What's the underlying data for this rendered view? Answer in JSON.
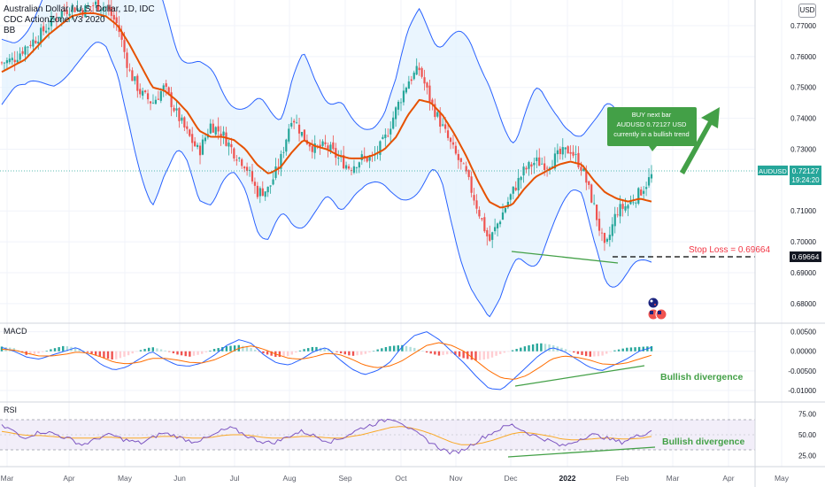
{
  "header": {
    "symbol_title": "Australian Dollar / U.S. Dollar, 1D, IDC",
    "indicator_1": "CDC ActionZone V3 2020",
    "indicator_2": "BB",
    "currency": "USD"
  },
  "colors": {
    "up": "#26a69a",
    "down": "#ef5350",
    "bb_line": "#2962ff",
    "bb_fill": "#e3f2fd",
    "ema": "#e65100",
    "annotation_green": "#43a047",
    "stop_loss": "#f23645",
    "macd_line": "#2962ff",
    "signal_line": "#ff6d00",
    "rsi_line": "#7e57c2",
    "rsi_ma": "#f9a825",
    "rsi_band": "#ede7f6"
  },
  "icons": [
    "australia-flag-icon",
    "usa-flag-icon"
  ],
  "annotations": {
    "buy_box": [
      "BUY next bar",
      "AUDUSD 0.72127 USD",
      "currently in a bullish trend"
    ],
    "stop_loss": "Stop Loss = 0.69664",
    "macd_divergence": "Bullish divergence",
    "rsi_divergence": "Bullish divergence"
  },
  "price_tags": {
    "symbol": "AUDUSD",
    "last": "0.72127",
    "countdown": "19:24:20",
    "stop": "0.69664"
  },
  "chart_data": [
    {
      "type": "candlestick",
      "title": "Australian Dollar / U.S. Dollar, 1D, IDC",
      "ylim": [
        0.6745,
        0.7783
      ],
      "y_ticks": [
        "0.77000",
        "0.76000",
        "0.75000",
        "0.74000",
        "0.73000",
        "0.71000",
        "0.70000",
        "0.69000",
        "0.68000"
      ],
      "x_ticks": [
        "Mar",
        "Apr",
        "May",
        "Jun",
        "Jul",
        "Aug",
        "Sep",
        "Oct",
        "Nov",
        "Dec",
        "2022",
        "Feb",
        "Mar",
        "Apr",
        "May"
      ],
      "close_path": [
        0.758,
        0.759,
        0.763,
        0.766,
        0.77,
        0.774,
        0.776,
        0.775,
        0.777,
        0.776,
        0.77,
        0.755,
        0.748,
        0.745,
        0.75,
        0.742,
        0.735,
        0.729,
        0.738,
        0.735,
        0.729,
        0.725,
        0.716,
        0.717,
        0.726,
        0.741,
        0.734,
        0.73,
        0.731,
        0.727,
        0.724,
        0.727,
        0.727,
        0.733,
        0.743,
        0.752,
        0.756,
        0.745,
        0.737,
        0.729,
        0.722,
        0.711,
        0.7,
        0.708,
        0.716,
        0.723,
        0.726,
        0.725,
        0.728,
        0.73,
        0.724,
        0.712,
        0.697,
        0.71,
        0.712,
        0.716,
        0.7213
      ],
      "series": [
        {
          "name": "BB",
          "ema": [
            0.755,
            0.757,
            0.759,
            0.763,
            0.767,
            0.77,
            0.773,
            0.774,
            0.774,
            0.773,
            0.77,
            0.764,
            0.757,
            0.75,
            0.749,
            0.746,
            0.742,
            0.736,
            0.734,
            0.734,
            0.733,
            0.73,
            0.725,
            0.722,
            0.724,
            0.729,
            0.733,
            0.731,
            0.73,
            0.728,
            0.727,
            0.727,
            0.728,
            0.73,
            0.734,
            0.741,
            0.746,
            0.745,
            0.741,
            0.735,
            0.728,
            0.72,
            0.713,
            0.711,
            0.712,
            0.717,
            0.721,
            0.723,
            0.725,
            0.726,
            0.725,
            0.72,
            0.716,
            0.714,
            0.713,
            0.714,
            0.713
          ]
        }
      ]
    },
    {
      "type": "bar",
      "title": "MACD",
      "ylim": [
        -0.0125,
        0.0065
      ],
      "y_ticks": [
        "0.00500",
        "0.00000",
        "-0.00500",
        "-0.01000"
      ],
      "histogram": [
        0.0012,
        0.0008,
        -0.001,
        -0.0005,
        0.0006,
        0.0014,
        0.0009,
        -0.0004,
        -0.0016,
        -0.0022,
        -0.0012,
        0.0002,
        0.0011,
        0.0003,
        -0.0008,
        -0.0014,
        -0.0007,
        0.0006,
        0.0013,
        0.0016,
        0.0008,
        -0.0006,
        -0.0015,
        -0.0012,
        0.0004,
        0.0012,
        0.0006,
        -0.0004,
        -0.0012,
        -0.0008,
        0.0004,
        0.0013,
        0.0016,
        0.0009,
        -0.0003,
        -0.0011,
        -0.0006,
        -0.0018,
        -0.0024,
        -0.0019,
        -0.0006,
        0.0004,
        0.0014,
        0.0021,
        0.0017,
        0.0007,
        -0.0006,
        -0.0014,
        -0.0012,
        0.0002,
        0.0009,
        0.0011,
        0.0013
      ],
      "series": [
        {
          "name": "MACD",
          "values": [
            0.001,
            0.0,
            -0.0015,
            -0.002,
            -0.001,
            0.0,
            0.001,
            -0.001,
            -0.0035,
            -0.0048,
            -0.004,
            -0.002,
            0.0,
            -0.002,
            -0.0035,
            -0.0038,
            -0.003,
            -0.001,
            0.0015,
            0.003,
            0.002,
            -0.001,
            -0.003,
            -0.0035,
            -0.002,
            0.0,
            0.001,
            -0.002,
            -0.0045,
            -0.006,
            -0.005,
            -0.003,
            0.001,
            0.004,
            0.005,
            0.003,
            0.0,
            -0.003,
            -0.0065,
            -0.0095,
            -0.0098,
            -0.007,
            -0.004,
            -0.001,
            0.001,
            0.0,
            -0.002,
            -0.004,
            -0.005,
            -0.0035,
            -0.002,
            0.0,
            0.001
          ]
        },
        {
          "name": "Signal",
          "values": [
            0.0005,
            0.0003,
            -0.0005,
            -0.0012,
            -0.0012,
            -0.0008,
            -0.0002,
            -0.0005,
            -0.0015,
            -0.0028,
            -0.0032,
            -0.0028,
            -0.0018,
            -0.0018,
            -0.0022,
            -0.0028,
            -0.003,
            -0.0022,
            -0.0008,
            0.0008,
            0.0014,
            0.0005,
            -0.0008,
            -0.0018,
            -0.002,
            -0.0014,
            -0.0005,
            -0.0008,
            -0.002,
            -0.0035,
            -0.0042,
            -0.0038,
            -0.0025,
            -0.0005,
            0.0015,
            0.0022,
            0.0015,
            0.0,
            -0.0025,
            -0.005,
            -0.0068,
            -0.0072,
            -0.0062,
            -0.0042,
            -0.002,
            -0.0012,
            -0.0015,
            -0.0022,
            -0.0032,
            -0.0034,
            -0.003,
            -0.002,
            -0.001
          ]
        }
      ]
    },
    {
      "type": "line",
      "title": "RSI",
      "ylim": [
        14,
        86
      ],
      "y_ticks": [
        "75.00",
        "50.00",
        "25.00"
      ],
      "series": [
        {
          "name": "RSI",
          "values": [
            60,
            56,
            46,
            50,
            54,
            52,
            48,
            44,
            38,
            42,
            48,
            50,
            45,
            42,
            40,
            46,
            52,
            50,
            46,
            42,
            44,
            48,
            55,
            58,
            52,
            46,
            42,
            40,
            44,
            50,
            54,
            50,
            45,
            42,
            46,
            52,
            58,
            62,
            66,
            70,
            65,
            55,
            48,
            40,
            33,
            28,
            31,
            38,
            46,
            52,
            58,
            62,
            56,
            50,
            46,
            42,
            36,
            40,
            46,
            50,
            48,
            44,
            41,
            46,
            50,
            55
          ]
        },
        {
          "name": "MA",
          "values": [
            54,
            52,
            50,
            49,
            49,
            48,
            47,
            46,
            46,
            46,
            47,
            47,
            46,
            46,
            46,
            47,
            48,
            48,
            47,
            46,
            46,
            47,
            49,
            50,
            50,
            49,
            47,
            46,
            46,
            47,
            48,
            48,
            47,
            46,
            46,
            48,
            50,
            53,
            56,
            59,
            60,
            58,
            55,
            51,
            46,
            41,
            38,
            38,
            40,
            43,
            47,
            51,
            53,
            52,
            50,
            48,
            45,
            44,
            44,
            45,
            46,
            46,
            45,
            45,
            46,
            48
          ]
        }
      ]
    }
  ]
}
